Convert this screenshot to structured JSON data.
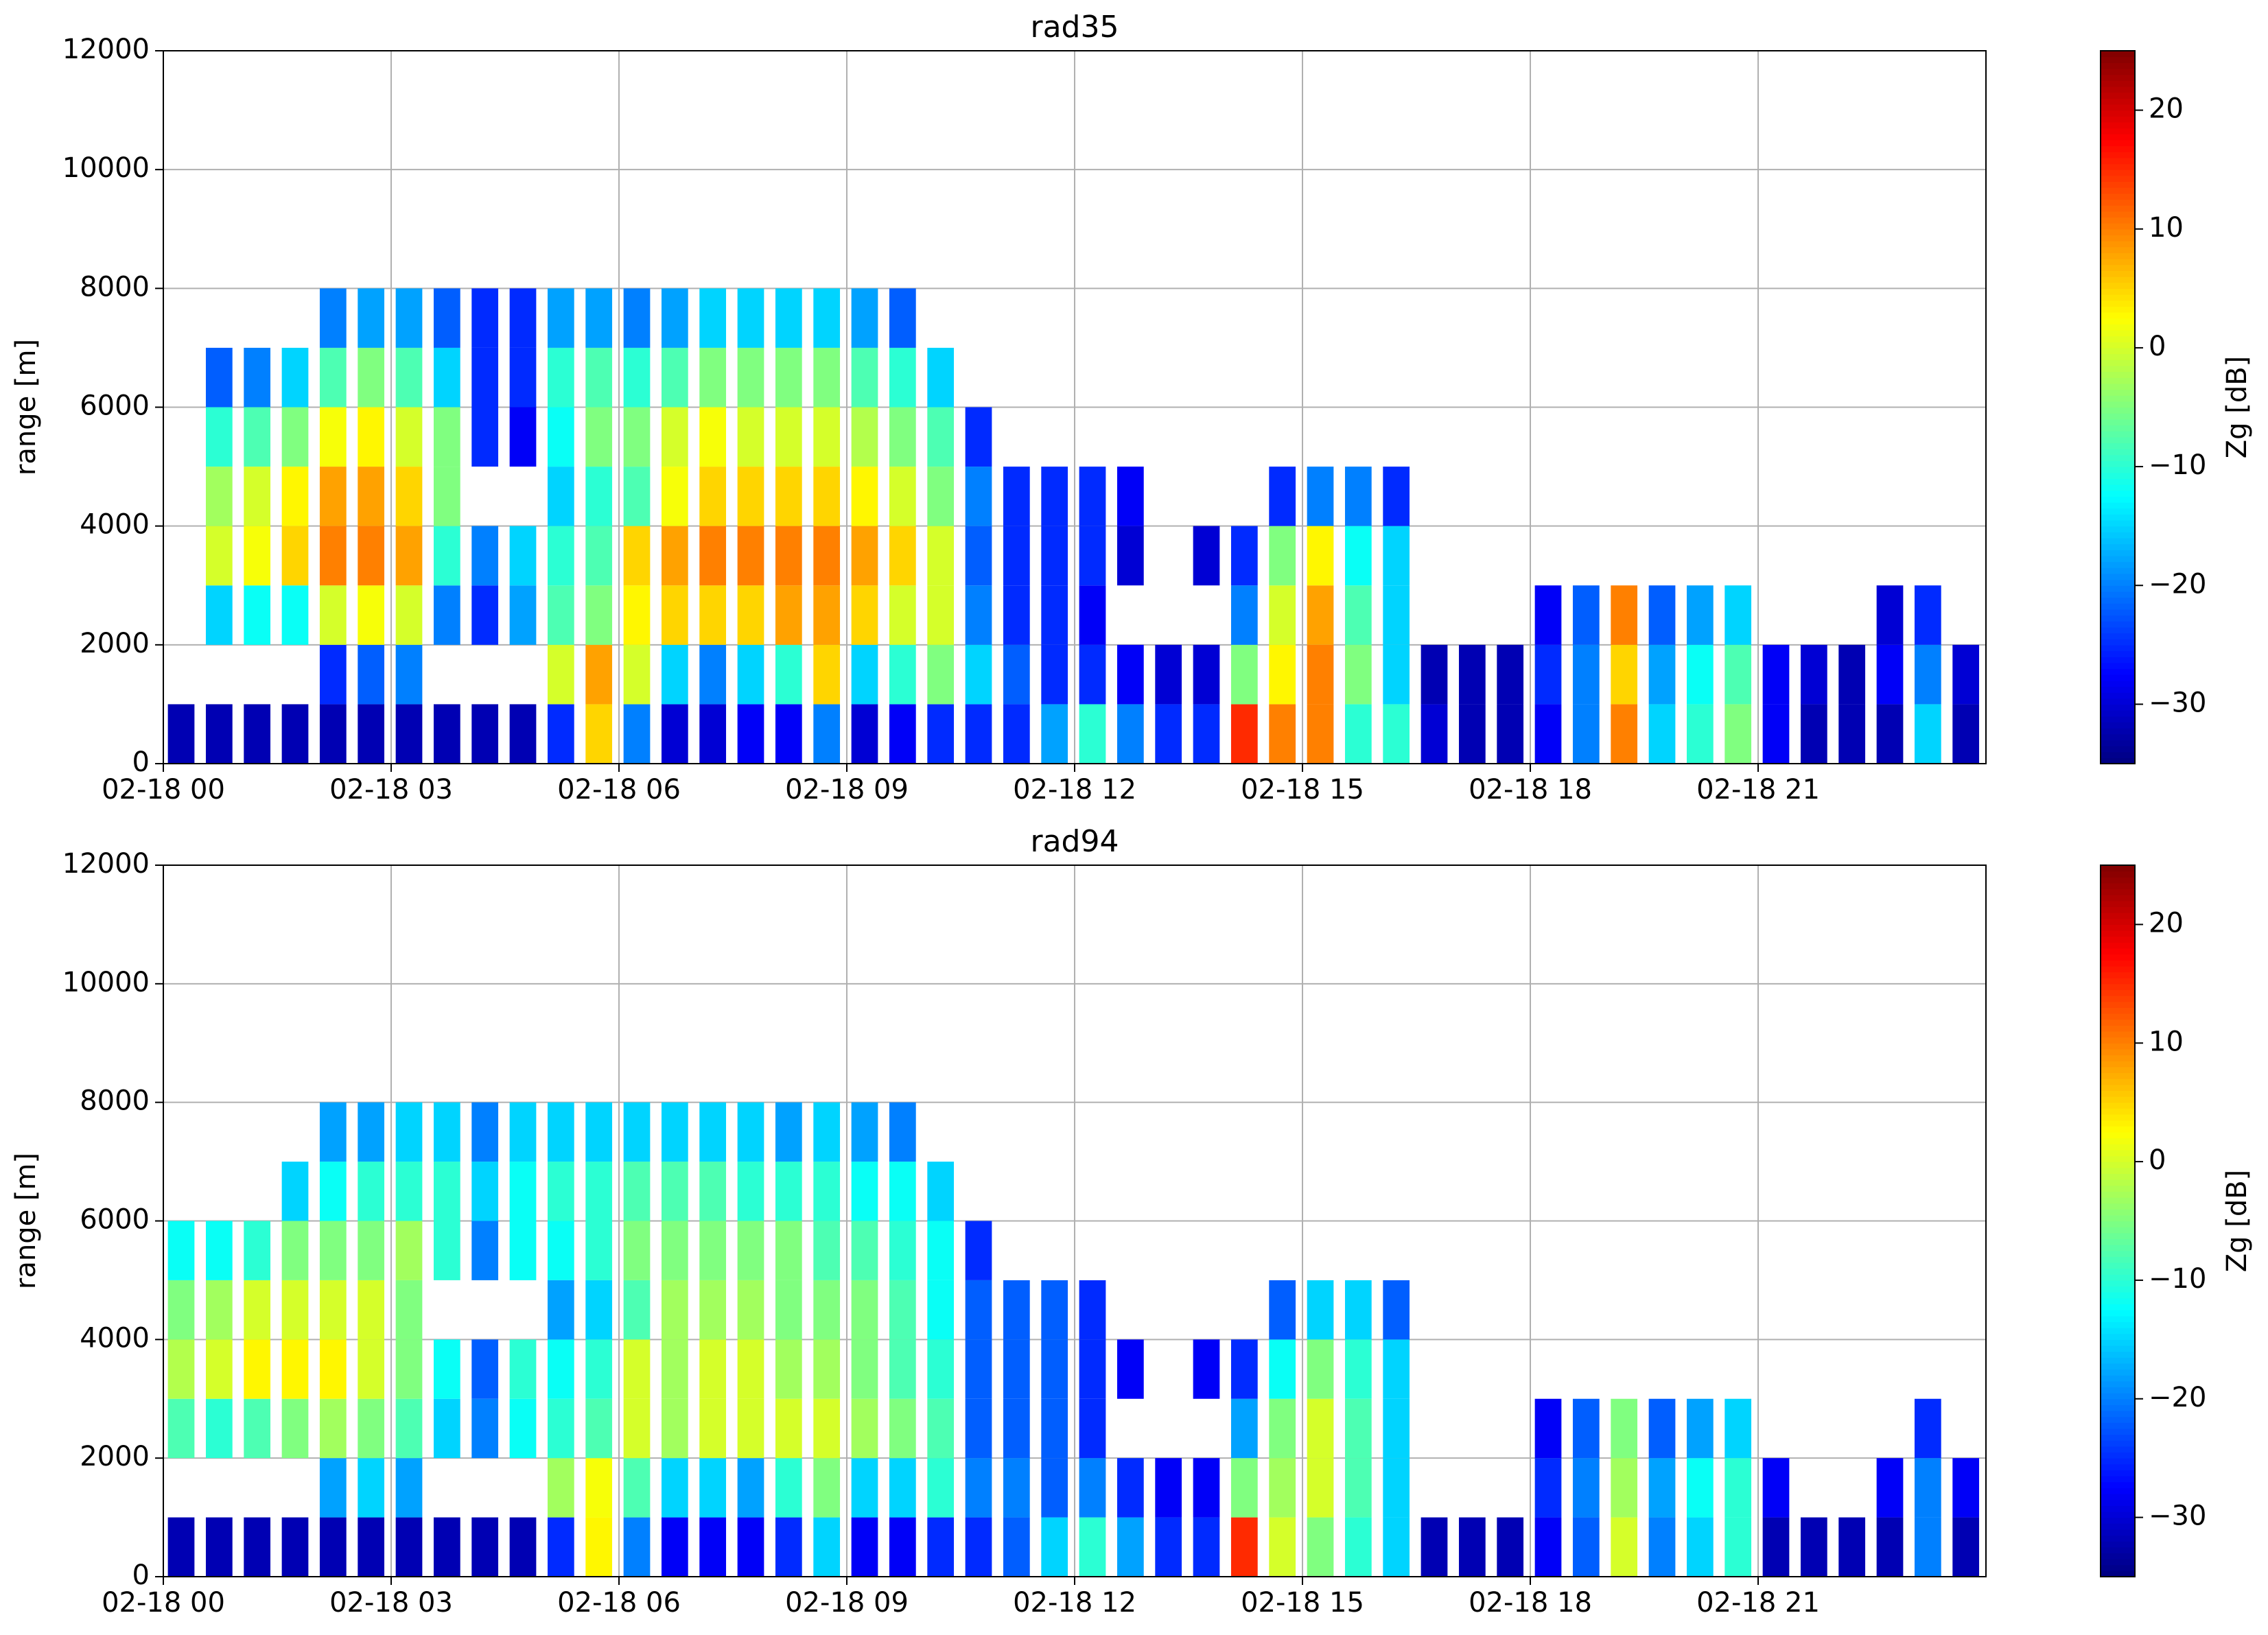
{
  "chart_data": [
    {
      "type": "heatmap",
      "title": "rad35",
      "ylabel": "range [m]",
      "zlabel": "Zg [dB]",
      "colormap": "jet",
      "grid": true,
      "xlim": [
        0,
        24
      ],
      "ylim": [
        0,
        12000
      ],
      "zlim": [
        -35,
        25
      ],
      "xticks": [
        {
          "value": 0,
          "label": "02-18 00"
        },
        {
          "value": 3,
          "label": "02-18 03"
        },
        {
          "value": 6,
          "label": "02-18 06"
        },
        {
          "value": 9,
          "label": "02-18 09"
        },
        {
          "value": 12,
          "label": "02-18 12"
        },
        {
          "value": 15,
          "label": "02-18 15"
        },
        {
          "value": 18,
          "label": "02-18 18"
        },
        {
          "value": 21,
          "label": "02-18 21"
        }
      ],
      "yticks": [
        0,
        2000,
        4000,
        6000,
        8000,
        10000,
        12000
      ],
      "zticks": [
        {
          "value": -30,
          "label": "−30"
        },
        {
          "value": -20,
          "label": "−20"
        },
        {
          "value": -10,
          "label": "−10"
        },
        0,
        10,
        20
      ],
      "x_bins": [
        0,
        0.5,
        1,
        1.5,
        2,
        2.5,
        3,
        3.5,
        4,
        4.5,
        5,
        5.5,
        6,
        6.5,
        7,
        7.5,
        8,
        8.5,
        9,
        9.5,
        10,
        10.5,
        11,
        11.5,
        12,
        12.5,
        13,
        13.5,
        14,
        14.5,
        15,
        15.5,
        16,
        16.5,
        17,
        17.5,
        18,
        18.5,
        19,
        19.5,
        20,
        20.5,
        21,
        21.5,
        22,
        22.5,
        23,
        23.5,
        24
      ],
      "y_bins": [
        0,
        1000,
        2000,
        3000,
        4000,
        5000,
        6000,
        7000,
        8000
      ],
      "z": [
        [
          -32,
          null,
          null,
          null,
          null,
          null,
          null,
          null
        ],
        [
          -32,
          null,
          -15,
          0,
          -3,
          -10,
          -22,
          null
        ],
        [
          -32,
          null,
          -12,
          2,
          0,
          -8,
          -20,
          null
        ],
        [
          -32,
          null,
          -12,
          5,
          3,
          -5,
          -15,
          null
        ],
        [
          -32,
          -25,
          0,
          10,
          8,
          2,
          -8,
          -20
        ],
        [
          -32,
          -22,
          2,
          10,
          8,
          3,
          -5,
          -18
        ],
        [
          -32,
          -20,
          0,
          8,
          5,
          0,
          -8,
          -18
        ],
        [
          -32,
          null,
          -20,
          -10,
          -5,
          -5,
          -15,
          -22
        ],
        [
          -32,
          null,
          -25,
          -20,
          null,
          -25,
          -25,
          -25
        ],
        [
          -32,
          null,
          -18,
          -15,
          null,
          -28,
          -25,
          -25
        ],
        [
          -25,
          0,
          -8,
          -10,
          -15,
          -12,
          -10,
          -18
        ],
        [
          5,
          8,
          -5,
          -8,
          -10,
          -5,
          -8,
          -18
        ],
        [
          -20,
          0,
          3,
          5,
          -8,
          -5,
          -10,
          -20
        ],
        [
          -30,
          -15,
          5,
          8,
          2,
          0,
          -8,
          -18
        ],
        [
          -30,
          -20,
          5,
          10,
          5,
          2,
          -5,
          -15
        ],
        [
          -28,
          -15,
          5,
          10,
          5,
          0,
          -5,
          -15
        ],
        [
          -28,
          -10,
          8,
          10,
          5,
          0,
          -5,
          -15
        ],
        [
          -20,
          5,
          8,
          10,
          5,
          0,
          -5,
          -15
        ],
        [
          -30,
          -15,
          5,
          8,
          3,
          -2,
          -8,
          -18
        ],
        [
          -28,
          -10,
          0,
          5,
          0,
          -5,
          -10,
          -22
        ],
        [
          -25,
          -5,
          0,
          0,
          -5,
          -8,
          -15,
          null
        ],
        [
          -25,
          -15,
          -20,
          -22,
          -20,
          -25,
          null,
          null
        ],
        [
          -25,
          -22,
          -25,
          -25,
          -25,
          null,
          null,
          null
        ],
        [
          -18,
          -25,
          -25,
          -25,
          -25,
          null,
          null,
          null
        ],
        [
          -10,
          -25,
          -28,
          -25,
          -25,
          null,
          null,
          null
        ],
        [
          -20,
          -28,
          null,
          -30,
          -28,
          null,
          null,
          null
        ],
        [
          -25,
          -30,
          null,
          null,
          null,
          null,
          null,
          null
        ],
        [
          -25,
          -30,
          null,
          -30,
          null,
          null,
          null,
          null
        ],
        [
          15,
          -5,
          -20,
          -25,
          null,
          null,
          null,
          null
        ],
        [
          10,
          3,
          0,
          -5,
          -25,
          null,
          null,
          null
        ],
        [
          10,
          10,
          8,
          3,
          -20,
          null,
          null,
          null
        ],
        [
          -10,
          -5,
          -8,
          -12,
          -20,
          null,
          null,
          null
        ],
        [
          -10,
          -15,
          -15,
          -15,
          -25,
          null,
          null,
          null
        ],
        [
          -30,
          -32,
          null,
          null,
          null,
          null,
          null,
          null
        ],
        [
          -32,
          -32,
          null,
          null,
          null,
          null,
          null,
          null
        ],
        [
          -32,
          -32,
          null,
          null,
          null,
          null,
          null,
          null
        ],
        [
          -28,
          -25,
          -28,
          null,
          null,
          null,
          null,
          null
        ],
        [
          -20,
          -20,
          -22,
          null,
          null,
          null,
          null,
          null
        ],
        [
          10,
          5,
          10,
          null,
          null,
          null,
          null,
          null
        ],
        [
          -15,
          -18,
          -22,
          null,
          null,
          null,
          null,
          null
        ],
        [
          -10,
          -12,
          -18,
          null,
          null,
          null,
          null,
          null
        ],
        [
          -5,
          -8,
          -15,
          null,
          null,
          null,
          null,
          null
        ],
        [
          -28,
          -28,
          null,
          null,
          null,
          null,
          null,
          null
        ],
        [
          -32,
          -30,
          null,
          null,
          null,
          null,
          null,
          null
        ],
        [
          -32,
          -32,
          null,
          null,
          null,
          null,
          null,
          null
        ],
        [
          -32,
          -28,
          -30,
          null,
          null,
          null,
          null,
          null
        ],
        [
          -15,
          -20,
          -25,
          null,
          null,
          null,
          null,
          null
        ],
        [
          -32,
          -30,
          null,
          null,
          null,
          null,
          null,
          null
        ]
      ]
    },
    {
      "type": "heatmap",
      "title": "rad94",
      "ylabel": "range [m]",
      "zlabel": "Zg [dB]",
      "colormap": "jet",
      "grid": true,
      "xlim": [
        0,
        24
      ],
      "ylim": [
        0,
        12000
      ],
      "zlim": [
        -35,
        25
      ],
      "xticks": [
        {
          "value": 0,
          "label": "02-18 00"
        },
        {
          "value": 3,
          "label": "02-18 03"
        },
        {
          "value": 6,
          "label": "02-18 06"
        },
        {
          "value": 9,
          "label": "02-18 09"
        },
        {
          "value": 12,
          "label": "02-18 12"
        },
        {
          "value": 15,
          "label": "02-18 15"
        },
        {
          "value": 18,
          "label": "02-18 18"
        },
        {
          "value": 21,
          "label": "02-18 21"
        }
      ],
      "yticks": [
        0,
        2000,
        4000,
        6000,
        8000,
        10000,
        12000
      ],
      "zticks": [
        {
          "value": -30,
          "label": "−30"
        },
        {
          "value": -20,
          "label": "−20"
        },
        {
          "value": -10,
          "label": "−10"
        },
        0,
        10,
        20
      ],
      "x_bins": [
        0,
        0.5,
        1,
        1.5,
        2,
        2.5,
        3,
        3.5,
        4,
        4.5,
        5,
        5.5,
        6,
        6.5,
        7,
        7.5,
        8,
        8.5,
        9,
        9.5,
        10,
        10.5,
        11,
        11.5,
        12,
        12.5,
        13,
        13.5,
        14,
        14.5,
        15,
        15.5,
        16,
        16.5,
        17,
        17.5,
        18,
        18.5,
        19,
        19.5,
        20,
        20.5,
        21,
        21.5,
        22,
        22.5,
        23,
        23.5,
        24
      ],
      "y_bins": [
        0,
        1000,
        2000,
        3000,
        4000,
        5000,
        6000,
        7000,
        8000
      ],
      "z": [
        [
          -32,
          null,
          -8,
          -2,
          -5,
          -12,
          null,
          null
        ],
        [
          -32,
          null,
          -10,
          0,
          -3,
          -12,
          null,
          null
        ],
        [
          -32,
          null,
          -8,
          3,
          0,
          -10,
          null,
          null
        ],
        [
          -32,
          null,
          -5,
          3,
          0,
          -5,
          -15,
          null
        ],
        [
          -32,
          -18,
          -3,
          3,
          0,
          -5,
          -12,
          -18
        ],
        [
          -32,
          -15,
          -5,
          0,
          0,
          -5,
          -10,
          -18
        ],
        [
          -32,
          -18,
          -8,
          -5,
          -5,
          -3,
          -10,
          -15
        ],
        [
          -32,
          null,
          -15,
          -12,
          null,
          -10,
          -10,
          -15
        ],
        [
          -32,
          null,
          -20,
          -22,
          null,
          -20,
          -15,
          -20
        ],
        [
          -32,
          null,
          -12,
          -10,
          null,
          -12,
          -12,
          -15
        ],
        [
          -25,
          -3,
          -10,
          -12,
          -18,
          -12,
          -10,
          -15
        ],
        [
          3,
          2,
          -8,
          -10,
          -15,
          -10,
          -10,
          -15
        ],
        [
          -20,
          -8,
          0,
          0,
          -8,
          -5,
          -8,
          -15
        ],
        [
          -28,
          -15,
          -3,
          -3,
          -3,
          -5,
          -8,
          -15
        ],
        [
          -28,
          -15,
          0,
          0,
          -3,
          -5,
          -8,
          -15
        ],
        [
          -28,
          -18,
          0,
          0,
          -3,
          -5,
          -10,
          -15
        ],
        [
          -25,
          -10,
          0,
          -3,
          -5,
          -5,
          -10,
          -18
        ],
        [
          -15,
          -5,
          0,
          -3,
          -5,
          -8,
          -10,
          -15
        ],
        [
          -28,
          -15,
          -3,
          -5,
          -5,
          -8,
          -12,
          -18
        ],
        [
          -28,
          -15,
          -5,
          -8,
          -8,
          -10,
          -12,
          -20
        ],
        [
          -25,
          -10,
          -8,
          -10,
          -12,
          -12,
          -15,
          null
        ],
        [
          -25,
          -20,
          -22,
          -22,
          -22,
          -25,
          null,
          null
        ],
        [
          -22,
          -20,
          -22,
          -22,
          -22,
          null,
          null,
          null
        ],
        [
          -15,
          -22,
          -22,
          -22,
          -22,
          null,
          null,
          null
        ],
        [
          -10,
          -20,
          -25,
          -25,
          -25,
          null,
          null,
          null
        ],
        [
          -18,
          -25,
          null,
          -28,
          null,
          null,
          null,
          null
        ],
        [
          -25,
          -28,
          null,
          null,
          null,
          null,
          null,
          null
        ],
        [
          -25,
          -28,
          null,
          -28,
          null,
          null,
          null,
          null
        ],
        [
          15,
          -5,
          -18,
          -25,
          null,
          null,
          null,
          null
        ],
        [
          0,
          -3,
          -5,
          -12,
          -22,
          null,
          null,
          null
        ],
        [
          -5,
          0,
          0,
          -5,
          -15,
          null,
          null,
          null
        ],
        [
          -10,
          -8,
          -8,
          -10,
          -15,
          null,
          null,
          null
        ],
        [
          -15,
          -15,
          -15,
          -15,
          -22,
          null,
          null,
          null
        ],
        [
          -32,
          null,
          null,
          null,
          null,
          null,
          null,
          null
        ],
        [
          -32,
          null,
          null,
          null,
          null,
          null,
          null,
          null
        ],
        [
          -32,
          null,
          null,
          null,
          null,
          null,
          null,
          null
        ],
        [
          -28,
          -25,
          -28,
          null,
          null,
          null,
          null,
          null
        ],
        [
          -22,
          -20,
          -22,
          null,
          null,
          null,
          null,
          null
        ],
        [
          0,
          -3,
          -5,
          null,
          null,
          null,
          null,
          null
        ],
        [
          -20,
          -18,
          -22,
          null,
          null,
          null,
          null,
          null
        ],
        [
          -15,
          -12,
          -18,
          null,
          null,
          null,
          null,
          null
        ],
        [
          -10,
          -10,
          -15,
          null,
          null,
          null,
          null,
          null
        ],
        [
          -32,
          -28,
          null,
          null,
          null,
          null,
          null,
          null
        ],
        [
          -32,
          null,
          null,
          null,
          null,
          null,
          null,
          null
        ],
        [
          -32,
          null,
          null,
          null,
          null,
          null,
          null,
          null
        ],
        [
          -32,
          -28,
          null,
          null,
          null,
          null,
          null,
          null
        ],
        [
          -20,
          -20,
          -25,
          null,
          null,
          null,
          null,
          null
        ],
        [
          -32,
          -28,
          null,
          null,
          null,
          null,
          null,
          null
        ]
      ]
    }
  ]
}
